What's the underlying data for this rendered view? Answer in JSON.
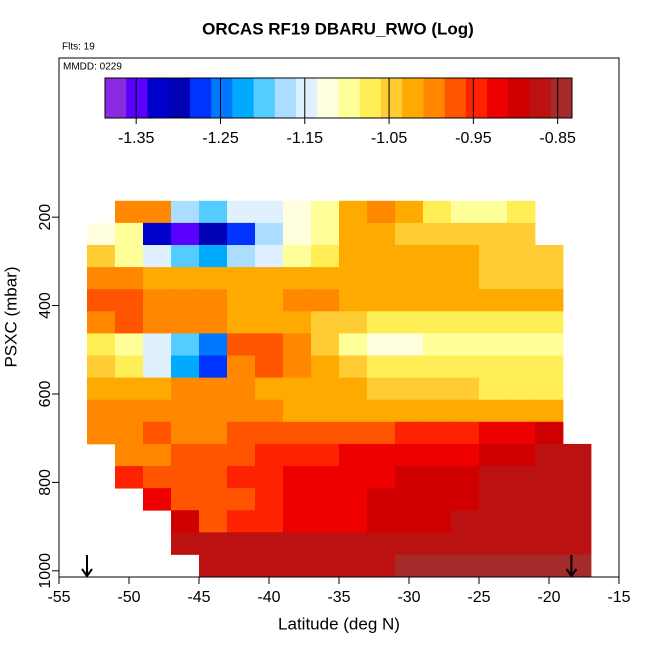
{
  "chart_data": {
    "type": "heatmap",
    "title": "ORCAS RF19 DBARU_RWO (Log)",
    "subtitle": "Flts: 19",
    "annotation": "MMDD: 0229",
    "x_label": "Latitude (deg N)",
    "y_label": "PSXC (mbar)",
    "xlim": [
      -55,
      -15
    ],
    "xticks": [
      -55,
      -50,
      -45,
      -40,
      -35,
      -30,
      -25,
      -20,
      -15
    ],
    "ylim": [
      1014,
      -160
    ],
    "yticks": [
      200,
      400,
      600,
      800,
      1000
    ],
    "x": [
      -52,
      -50,
      -48,
      -46,
      -44,
      -42,
      -40,
      -38,
      -36,
      -34,
      -32,
      -30,
      -28,
      -26,
      -24,
      -22,
      -20,
      -18
    ],
    "y": [
      188,
      238,
      288,
      338,
      388,
      438,
      488,
      538,
      588,
      638,
      688,
      738,
      788,
      838,
      888,
      938,
      988
    ],
    "z": [
      [
        null,
        -0.99,
        -0.99,
        -1.17,
        -1.19,
        -1.16,
        -1.14,
        -1.12,
        -1.1,
        -1.01,
        -1.0,
        -1.03,
        -1.08,
        -1.09,
        -1.09,
        -1.08,
        null,
        null
      ],
      [
        -1.12,
        -1.1,
        -1.32,
        -1.34,
        -1.31,
        -1.28,
        -1.18,
        -1.12,
        -1.1,
        -1.03,
        -1.03,
        -1.04,
        -1.04,
        -1.04,
        -1.05,
        -1.05,
        null,
        null
      ],
      [
        -1.05,
        -1.1,
        -1.16,
        -1.2,
        -1.22,
        -1.18,
        -1.14,
        -1.1,
        -1.06,
        -1.03,
        -1.02,
        -1.03,
        -1.03,
        -1.03,
        -1.04,
        -1.04,
        -1.04,
        null
      ],
      [
        -1.0,
        -1.0,
        -1.01,
        -1.01,
        -1.02,
        -1.02,
        -1.03,
        -1.02,
        -1.02,
        -1.02,
        -1.02,
        -1.03,
        -1.03,
        -1.03,
        -1.04,
        -1.04,
        -1.04,
        null
      ],
      [
        -0.98,
        -0.98,
        -0.99,
        -1.0,
        -1.0,
        -1.01,
        -1.01,
        -1.0,
        -1.0,
        -1.01,
        -1.02,
        -1.02,
        -1.02,
        -1.03,
        -1.03,
        -1.03,
        -1.03,
        null
      ],
      [
        -1.0,
        -0.98,
        -0.99,
        -0.99,
        -1.0,
        -1.01,
        -1.02,
        -1.03,
        -1.04,
        -1.05,
        -1.06,
        -1.06,
        -1.07,
        -1.07,
        -1.07,
        -1.08,
        -1.08,
        null
      ],
      [
        -1.06,
        -1.1,
        -1.15,
        -1.2,
        -1.24,
        -0.98,
        -0.97,
        -0.99,
        -1.05,
        -1.1,
        -1.11,
        -1.11,
        -1.1,
        -1.1,
        -1.1,
        -1.1,
        -1.09,
        null
      ],
      [
        -1.04,
        -1.08,
        -1.14,
        -1.22,
        -1.27,
        -1.0,
        -0.98,
        -0.99,
        -1.01,
        -1.04,
        -1.06,
        -1.07,
        -1.07,
        -1.07,
        -1.07,
        -1.07,
        -1.07,
        null
      ],
      [
        -1.01,
        -1.01,
        -1.01,
        -1.0,
        -1.0,
        -1.0,
        -1.01,
        -1.01,
        -1.02,
        -1.03,
        -1.04,
        -1.05,
        -1.05,
        -1.05,
        -1.06,
        -1.06,
        -1.06,
        null
      ],
      [
        -0.99,
        -0.99,
        -1.0,
        -1.0,
        -1.0,
        -1.0,
        -1.0,
        -1.01,
        -1.01,
        -1.01,
        -1.01,
        -1.02,
        -1.02,
        -1.02,
        -1.02,
        -1.02,
        -1.02,
        null
      ],
      [
        -1.0,
        -0.99,
        -0.98,
        -0.99,
        -0.99,
        -0.98,
        -0.98,
        -0.97,
        -0.97,
        -0.96,
        -0.96,
        -0.95,
        -0.95,
        -0.94,
        -0.93,
        -0.92,
        -0.9,
        null
      ],
      [
        null,
        -1.0,
        -0.99,
        -0.98,
        -0.97,
        -0.96,
        -0.95,
        -0.95,
        -0.94,
        -0.93,
        -0.93,
        -0.92,
        -0.92,
        -0.91,
        -0.9,
        -0.89,
        -0.88,
        -0.87
      ],
      [
        null,
        -0.95,
        -0.97,
        -0.98,
        -0.96,
        -0.95,
        -0.94,
        -0.93,
        -0.92,
        -0.91,
        -0.91,
        -0.9,
        -0.89,
        -0.89,
        -0.88,
        -0.88,
        -0.87,
        -0.87
      ],
      [
        null,
        null,
        -0.93,
        -0.97,
        -0.97,
        -0.96,
        -0.94,
        -0.93,
        -0.92,
        -0.91,
        -0.9,
        -0.9,
        -0.89,
        -0.89,
        -0.88,
        -0.88,
        -0.87,
        -0.87
      ],
      [
        null,
        null,
        null,
        -0.9,
        -0.96,
        -0.95,
        -0.94,
        -0.93,
        -0.92,
        -0.91,
        -0.9,
        -0.89,
        -0.89,
        -0.88,
        -0.88,
        -0.87,
        -0.87,
        -0.87
      ],
      [
        null,
        null,
        null,
        -0.87,
        -0.87,
        -0.87,
        -0.87,
        -0.87,
        -0.87,
        -0.87,
        -0.87,
        -0.87,
        -0.86,
        -0.86,
        -0.86,
        -0.86,
        -0.86,
        -0.86
      ],
      [
        null,
        null,
        null,
        null,
        -0.86,
        -0.86,
        -0.87,
        -0.87,
        -0.86,
        -0.86,
        -0.86,
        -0.85,
        -0.85,
        -0.85,
        -0.85,
        -0.85,
        -0.85,
        -0.85
      ]
    ],
    "zlim": [
      -1.387,
      -0.833
    ],
    "zticks": [
      -1.35,
      -1.25,
      -1.15,
      -1.05,
      -0.95,
      -0.85
    ],
    "colors": [
      "#8a2be2",
      "#5a00ff",
      "#0000cd",
      "#0000b4",
      "#0033ff",
      "#0077ff",
      "#00aaff",
      "#55ccff",
      "#aaddff",
      "#dff0ff",
      "#ffffe0",
      "#ffff99",
      "#ffee55",
      "#ffcc33",
      "#ffaa00",
      "#ff8800",
      "#ff5500",
      "#ff2200",
      "#ee0000",
      "#d00000",
      "#bb1111",
      "#a52a2a"
    ],
    "markers_x": [
      -53,
      -18.4
    ]
  }
}
